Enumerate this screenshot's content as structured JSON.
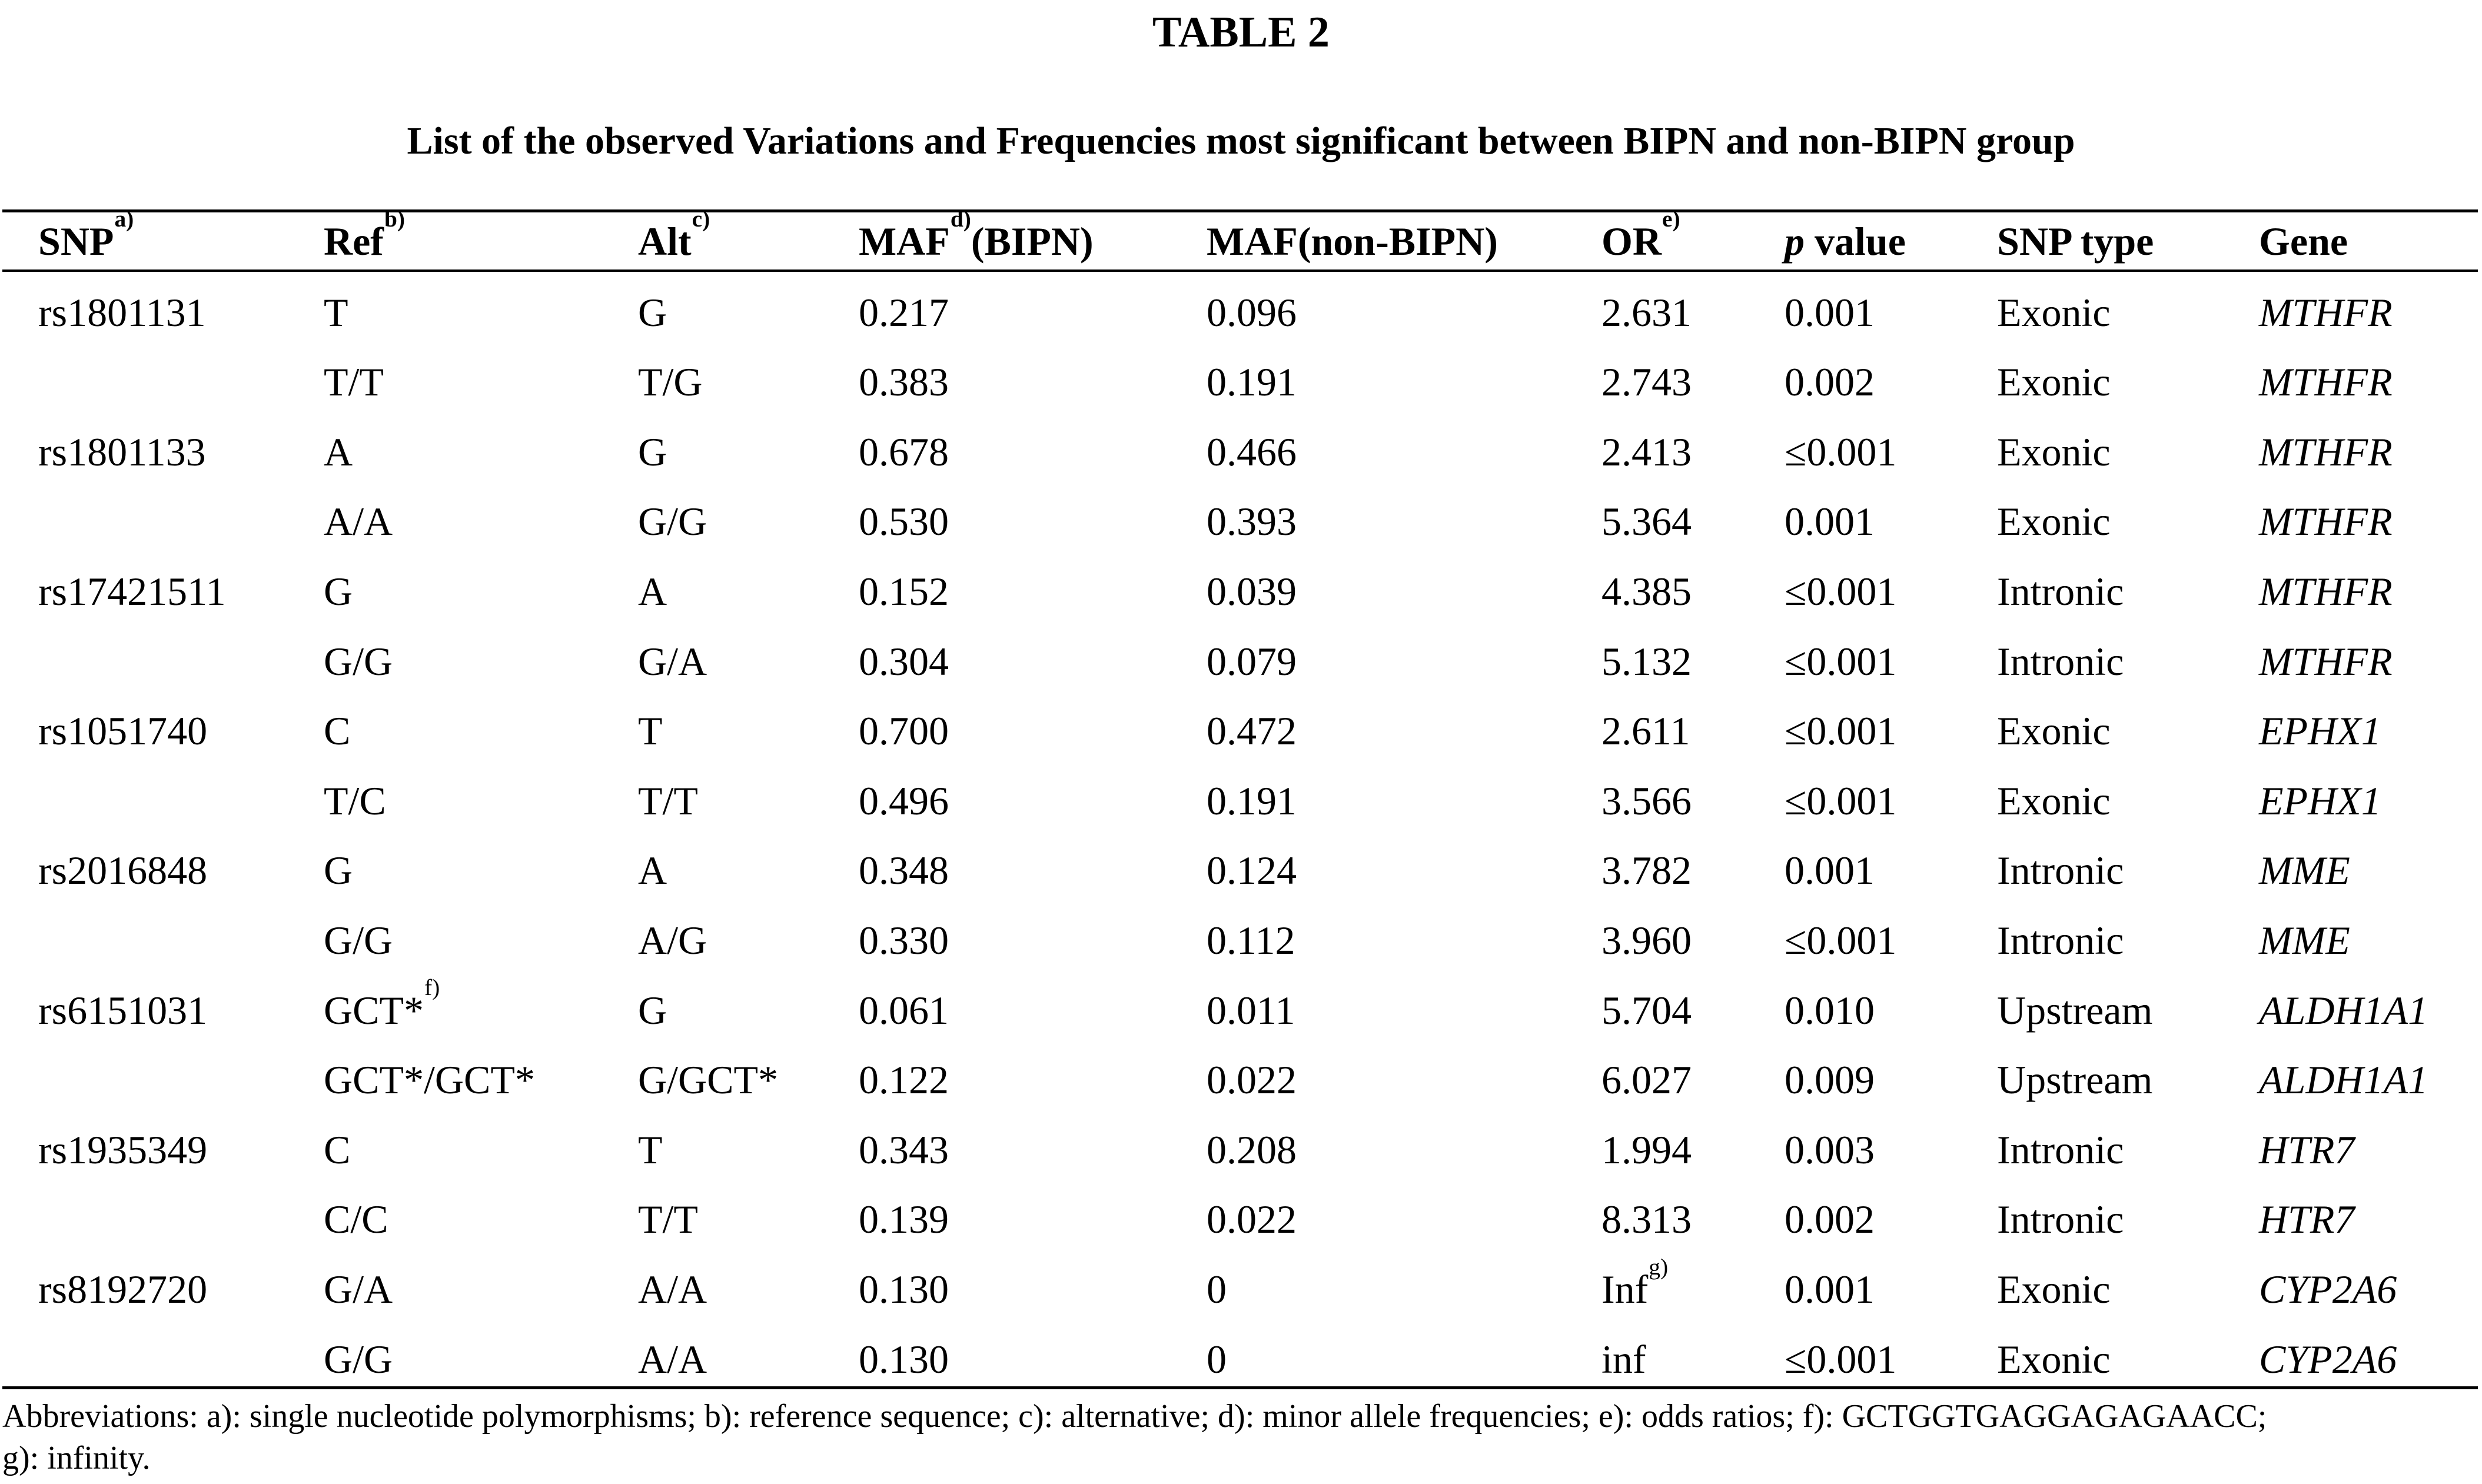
{
  "title": "TABLE 2",
  "subtitle": "List of the observed Variations and Frequencies most significant between BIPN and non-BIPN group",
  "colors": {
    "text": "#000000",
    "background": "#ffffff"
  },
  "table": {
    "headers": [
      {
        "t": "SNP",
        "sup": "a)"
      },
      {
        "t": "Ref",
        "sup": "b)"
      },
      {
        "t": "Alt",
        "sup": "c)"
      },
      {
        "t": "MAF",
        "sup": "d)",
        "after": "(BIPN)"
      },
      {
        "t": "MAF(non-BIPN)"
      },
      {
        "t": "OR",
        "sup": "e)"
      },
      {
        "t": "p",
        "italic": true,
        "after": " value"
      },
      {
        "t": "SNP type"
      },
      {
        "t": "Gene"
      }
    ],
    "rows": [
      [
        "rs1801131",
        "T",
        "G",
        "0.217",
        "0.096",
        "2.631",
        "0.001",
        "Exonic",
        "MTHFR"
      ],
      [
        "",
        "T/T",
        "T/G",
        "0.383",
        "0.191",
        "2.743",
        "0.002",
        "Exonic",
        "MTHFR"
      ],
      [
        "rs1801133",
        "A",
        "G",
        "0.678",
        "0.466",
        "2.413",
        "≤0.001",
        "Exonic",
        "MTHFR"
      ],
      [
        "",
        "A/A",
        "G/G",
        "0.530",
        "0.393",
        "5.364",
        "0.001",
        "Exonic",
        "MTHFR"
      ],
      [
        "rs17421511",
        "G",
        "A",
        "0.152",
        "0.039",
        "4.385",
        "≤0.001",
        "Intronic",
        "MTHFR"
      ],
      [
        "",
        "G/G",
        "G/A",
        "0.304",
        "0.079",
        "5.132",
        "≤0.001",
        "Intronic",
        "MTHFR"
      ],
      [
        "rs1051740",
        "C",
        "T",
        "0.700",
        "0.472",
        "2.611",
        "≤0.001",
        "Exonic",
        "EPHX1"
      ],
      [
        "",
        "T/C",
        "T/T",
        "0.496",
        "0.191",
        "3.566",
        "≤0.001",
        "Exonic",
        "EPHX1"
      ],
      [
        "rs2016848",
        "G",
        "A",
        "0.348",
        "0.124",
        "3.782",
        "0.001",
        "Intronic",
        "MME"
      ],
      [
        "",
        "G/G",
        "A/G",
        "0.330",
        "0.112",
        "3.960",
        "≤0.001",
        "Intronic",
        "MME"
      ],
      [
        "rs6151031",
        {
          "t": "GCT*",
          "sup": "f)"
        },
        "G",
        "0.061",
        "0.011",
        "5.704",
        "0.010",
        "Upstream",
        "ALDH1A1"
      ],
      [
        "",
        "GCT*/GCT*",
        "G/GCT*",
        "0.122",
        "0.022",
        "6.027",
        "0.009",
        "Upstream",
        "ALDH1A1"
      ],
      [
        "rs1935349",
        "C",
        "T",
        "0.343",
        "0.208",
        "1.994",
        "0.003",
        "Intronic",
        "HTR7"
      ],
      [
        "",
        "C/C",
        "T/T",
        "0.139",
        "0.022",
        "8.313",
        "0.002",
        "Intronic",
        "HTR7"
      ],
      [
        "rs8192720",
        "G/A",
        "A/A",
        "0.130",
        "0",
        {
          "t": "Inf",
          "sup": "g)"
        },
        "0.001",
        "Exonic",
        "CYP2A6"
      ],
      [
        "",
        "G/G",
        "A/A",
        "0.130",
        "0",
        "inf",
        "≤0.001",
        "Exonic",
        "CYP2A6"
      ]
    ]
  },
  "footnote": {
    "line1": "Abbreviations: a): single nucleotide polymorphisms; b): reference sequence; c): alternative; d): minor allele frequencies; e): odds ratios; f): GCTGGTGAGGAGAGAACC;",
    "line2": "g): infinity."
  }
}
